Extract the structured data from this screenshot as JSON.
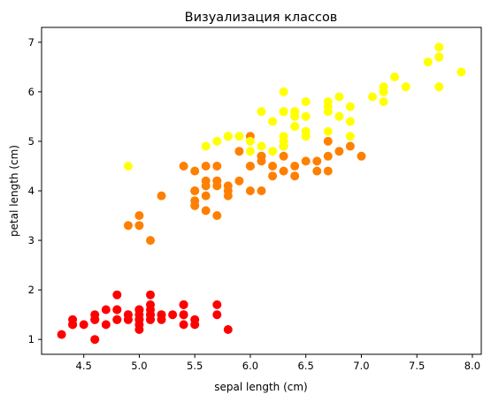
{
  "chart_data": {
    "type": "scatter",
    "title": "Визуализация классов",
    "xlabel": "sepal length (cm)",
    "ylabel": "petal length (cm)",
    "xlim": [
      4.12,
      8.08
    ],
    "ylim": [
      0.7,
      7.3
    ],
    "xticks": [
      "4.5",
      "5.0",
      "5.5",
      "6.0",
      "6.5",
      "7.0",
      "7.5",
      "8.0"
    ],
    "yticks": [
      "1",
      "2",
      "3",
      "4",
      "5",
      "6",
      "7"
    ],
    "grid": false,
    "series": [
      {
        "color": "#ff0000",
        "points": [
          [
            5.1,
            1.4
          ],
          [
            4.9,
            1.4
          ],
          [
            4.7,
            1.3
          ],
          [
            4.6,
            1.5
          ],
          [
            5.0,
            1.4
          ],
          [
            5.4,
            1.7
          ],
          [
            4.6,
            1.4
          ],
          [
            5.0,
            1.5
          ],
          [
            4.4,
            1.4
          ],
          [
            4.9,
            1.5
          ],
          [
            5.4,
            1.5
          ],
          [
            4.8,
            1.6
          ],
          [
            4.8,
            1.4
          ],
          [
            4.3,
            1.1
          ],
          [
            5.8,
            1.2
          ],
          [
            5.7,
            1.5
          ],
          [
            5.4,
            1.3
          ],
          [
            5.1,
            1.4
          ],
          [
            5.7,
            1.7
          ],
          [
            5.1,
            1.5
          ],
          [
            5.4,
            1.7
          ],
          [
            5.1,
            1.5
          ],
          [
            4.6,
            1.0
          ],
          [
            5.1,
            1.7
          ],
          [
            4.8,
            1.9
          ],
          [
            5.0,
            1.6
          ],
          [
            5.0,
            1.6
          ],
          [
            5.2,
            1.5
          ],
          [
            5.2,
            1.4
          ],
          [
            4.7,
            1.6
          ],
          [
            4.8,
            1.6
          ],
          [
            5.4,
            1.5
          ],
          [
            5.2,
            1.5
          ],
          [
            5.5,
            1.4
          ],
          [
            4.9,
            1.5
          ],
          [
            5.0,
            1.2
          ],
          [
            5.5,
            1.3
          ],
          [
            4.9,
            1.4
          ],
          [
            4.4,
            1.3
          ],
          [
            5.1,
            1.5
          ],
          [
            5.0,
            1.3
          ],
          [
            4.5,
            1.3
          ],
          [
            4.4,
            1.3
          ],
          [
            5.0,
            1.6
          ],
          [
            5.1,
            1.9
          ],
          [
            4.8,
            1.4
          ],
          [
            5.1,
            1.6
          ],
          [
            4.6,
            1.4
          ],
          [
            5.3,
            1.5
          ],
          [
            5.0,
            1.4
          ]
        ]
      },
      {
        "color": "#ff7f00",
        "points": [
          [
            7.0,
            4.7
          ],
          [
            6.4,
            4.5
          ],
          [
            6.9,
            4.9
          ],
          [
            5.5,
            4.0
          ],
          [
            6.5,
            4.6
          ],
          [
            5.7,
            4.5
          ],
          [
            6.3,
            4.7
          ],
          [
            4.9,
            3.3
          ],
          [
            6.6,
            4.6
          ],
          [
            5.2,
            3.9
          ],
          [
            5.0,
            3.5
          ],
          [
            5.9,
            4.2
          ],
          [
            6.0,
            4.0
          ],
          [
            6.1,
            4.7
          ],
          [
            5.6,
            3.6
          ],
          [
            6.7,
            4.4
          ],
          [
            5.6,
            4.5
          ],
          [
            5.8,
            4.1
          ],
          [
            6.2,
            4.5
          ],
          [
            5.6,
            3.9
          ],
          [
            5.9,
            4.8
          ],
          [
            6.1,
            4.0
          ],
          [
            6.3,
            4.9
          ],
          [
            6.1,
            4.7
          ],
          [
            6.4,
            4.3
          ],
          [
            6.6,
            4.4
          ],
          [
            6.8,
            4.8
          ],
          [
            6.7,
            5.0
          ],
          [
            6.0,
            4.5
          ],
          [
            5.7,
            3.5
          ],
          [
            5.5,
            3.8
          ],
          [
            5.5,
            3.7
          ],
          [
            5.8,
            3.9
          ],
          [
            6.0,
            5.1
          ],
          [
            5.4,
            4.5
          ],
          [
            6.0,
            4.5
          ],
          [
            6.7,
            4.7
          ],
          [
            6.3,
            4.4
          ],
          [
            5.6,
            4.1
          ],
          [
            5.5,
            4.0
          ],
          [
            5.5,
            4.4
          ],
          [
            6.1,
            4.6
          ],
          [
            5.8,
            4.0
          ],
          [
            5.0,
            3.3
          ],
          [
            5.6,
            4.2
          ],
          [
            5.7,
            4.2
          ],
          [
            5.7,
            4.2
          ],
          [
            6.2,
            4.3
          ],
          [
            5.1,
            3.0
          ],
          [
            5.7,
            4.1
          ]
        ]
      },
      {
        "color": "#ffff00",
        "points": [
          [
            6.3,
            6.0
          ],
          [
            5.8,
            5.1
          ],
          [
            7.1,
            5.9
          ],
          [
            6.3,
            5.6
          ],
          [
            6.5,
            5.8
          ],
          [
            7.6,
            6.6
          ],
          [
            4.9,
            4.5
          ],
          [
            7.3,
            6.3
          ],
          [
            6.7,
            5.8
          ],
          [
            7.2,
            6.1
          ],
          [
            6.5,
            5.1
          ],
          [
            6.4,
            5.3
          ],
          [
            6.8,
            5.5
          ],
          [
            5.7,
            5.0
          ],
          [
            5.8,
            5.1
          ],
          [
            6.4,
            5.3
          ],
          [
            6.5,
            5.5
          ],
          [
            7.7,
            6.7
          ],
          [
            7.7,
            6.9
          ],
          [
            6.0,
            5.0
          ],
          [
            6.9,
            5.7
          ],
          [
            5.6,
            4.9
          ],
          [
            7.7,
            6.7
          ],
          [
            6.3,
            4.9
          ],
          [
            6.7,
            5.7
          ],
          [
            7.2,
            6.0
          ],
          [
            6.2,
            4.8
          ],
          [
            6.1,
            4.9
          ],
          [
            6.4,
            5.6
          ],
          [
            7.2,
            5.8
          ],
          [
            7.4,
            6.1
          ],
          [
            7.9,
            6.4
          ],
          [
            6.4,
            5.6
          ],
          [
            6.3,
            5.1
          ],
          [
            6.1,
            5.6
          ],
          [
            7.7,
            6.1
          ],
          [
            6.3,
            5.6
          ],
          [
            6.4,
            5.5
          ],
          [
            6.0,
            4.8
          ],
          [
            6.9,
            5.4
          ],
          [
            6.7,
            5.6
          ],
          [
            6.9,
            5.1
          ],
          [
            5.8,
            5.1
          ],
          [
            6.8,
            5.9
          ],
          [
            6.7,
            5.7
          ],
          [
            6.7,
            5.2
          ],
          [
            6.3,
            5.0
          ],
          [
            6.5,
            5.2
          ],
          [
            6.2,
            5.4
          ],
          [
            5.9,
            5.1
          ]
        ]
      }
    ]
  }
}
